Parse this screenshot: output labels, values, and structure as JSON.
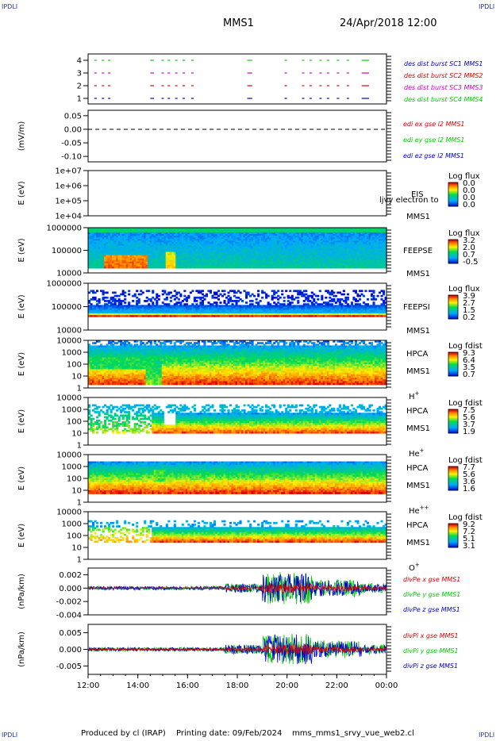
{
  "header": {
    "corner_label": "IPDLI",
    "mission": "MMS1",
    "datetime": "24/Apr/2018 12:00"
  },
  "footer": {
    "produced_by": "Produced by cl (IRAP)",
    "printing_date": "Printing date: 09/Feb/2024",
    "filename": "mms_mms1_srvy_vue_web2.cl"
  },
  "time_axis": {
    "start": "2018-04-24T12:00",
    "end": "2018-04-25T00:00",
    "tick_labels": [
      "12:00",
      "14:00",
      "16:00",
      "18:00",
      "20:00",
      "22:00",
      "00:00"
    ]
  },
  "colors": {
    "mms1": "#0000cc",
    "mms2": "#dd0000",
    "mms3": "#cc00cc",
    "mms4": "#00cc00"
  },
  "chart_data": [
    {
      "type": "scatter",
      "panel": "burst",
      "ylim": [
        0.5,
        4.5
      ],
      "y_ticks": [
        "1",
        "2",
        "3",
        "4"
      ],
      "legend": [
        {
          "text": "des dist burst SC1 MMS1",
          "color": "#0000cc"
        },
        {
          "text": "des dist burst SC2 MMS2",
          "color": "#dd0000"
        },
        {
          "text": "des dist burst SC3 MMS3",
          "color": "#cc00cc"
        },
        {
          "text": "des dist burst SC4 MMS4",
          "color": "#00cc00"
        }
      ],
      "burst_intervals_hours": [
        [
          12.25,
          12.32
        ],
        [
          12.55,
          12.6
        ],
        [
          12.8,
          12.87
        ],
        [
          14.5,
          14.65
        ],
        [
          14.95,
          15.0
        ],
        [
          15.2,
          15.25
        ],
        [
          15.5,
          15.55
        ],
        [
          15.8,
          15.85
        ],
        [
          16.15,
          16.2
        ],
        [
          18.4,
          18.6
        ],
        [
          19.9,
          20.0
        ],
        [
          20.6,
          20.65
        ],
        [
          20.9,
          20.95
        ],
        [
          21.3,
          21.35
        ],
        [
          21.6,
          21.65
        ],
        [
          22.0,
          22.1
        ],
        [
          22.4,
          22.45
        ],
        [
          23.0,
          23.3
        ]
      ]
    },
    {
      "type": "line",
      "panel": "edi_e",
      "ylabel": "(mV/m)",
      "ylim": [
        -0.12,
        0.07
      ],
      "y_ticks": [
        "0.05",
        "0.00",
        "-0.05",
        "-0.10"
      ],
      "series": [
        {
          "name": "edi ex gse l2 MMS1",
          "color": "#dd0000"
        },
        {
          "name": "edi ey gse l2 MMS1",
          "color": "#00cc00"
        },
        {
          "name": "edi ez gse l2 MMS1",
          "color": "#0000cc"
        }
      ],
      "values_note": "",
      "y": 0.0
    },
    {
      "type": "heatmap",
      "panel": "eis",
      "ylabel": "E (eV)",
      "y_ticks": [
        "1e+07",
        "1e+06",
        "1e+05",
        "1e+04"
      ],
      "right_labels": [
        "EIS",
        "MMS1"
      ],
      "overlay_text": "ljvy electron to",
      "colorbar": {
        "title": "Log flux",
        "ticks": [
          "0.0",
          "0.0",
          "0.0",
          "0.0"
        ]
      }
    },
    {
      "type": "heatmap",
      "panel": "feepse",
      "ylabel": "E (eV)",
      "y_ticks": [
        "1000000",
        "100000",
        "10000"
      ],
      "right_labels": [
        "FEEPSE",
        "MMS1"
      ],
      "colorbar": {
        "title": "Log flux",
        "ticks": [
          "3.2",
          "2.0",
          "0.7",
          "-0.5"
        ]
      }
    },
    {
      "type": "heatmap",
      "panel": "feepsi",
      "ylabel": "E (eV)",
      "y_ticks": [
        "1000000",
        "100000",
        "10000"
      ],
      "right_labels": [
        "FEEPSI",
        "MMS1"
      ],
      "colorbar": {
        "title": "Log flux",
        "ticks": [
          "3.9",
          "2.7",
          "1.5",
          "0.2"
        ]
      }
    },
    {
      "type": "heatmap",
      "panel": "hpca_h",
      "ylabel": "E (eV)",
      "y_ticks": [
        "10000",
        "1000",
        "100",
        "10",
        "1"
      ],
      "right_labels": [
        "HPCA",
        "MMS1",
        "H+"
      ],
      "colorbar": {
        "title": "Log fdist",
        "ticks": [
          "9.3",
          "6.4",
          "3.5",
          "0.7"
        ]
      }
    },
    {
      "type": "heatmap",
      "panel": "hpca_he1",
      "ylabel": "E (eV)",
      "y_ticks": [
        "10000",
        "1000",
        "100",
        "10",
        "1"
      ],
      "right_labels": [
        "HPCA",
        "MMS1",
        "He+"
      ],
      "colorbar": {
        "title": "Log fdist",
        "ticks": [
          "7.5",
          "5.6",
          "3.7",
          "1.9"
        ]
      }
    },
    {
      "type": "heatmap",
      "panel": "hpca_he2",
      "ylabel": "E (eV)",
      "y_ticks": [
        "10000",
        "1000",
        "100",
        "10",
        "1"
      ],
      "right_labels": [
        "HPCA",
        "MMS1",
        "He++"
      ],
      "colorbar": {
        "title": "Log fdist",
        "ticks": [
          "7.7",
          "5.6",
          "3.6",
          "1.6"
        ]
      }
    },
    {
      "type": "heatmap",
      "panel": "hpca_o",
      "ylabel": "E (eV)",
      "y_ticks": [
        "10000",
        "1000",
        "100",
        "10",
        "1"
      ],
      "right_labels": [
        "HPCA",
        "MMS1",
        "O+"
      ],
      "colorbar": {
        "title": "Log fdist",
        "ticks": [
          "9.2",
          "7.2",
          "5.1",
          "3.1"
        ]
      }
    },
    {
      "type": "line",
      "panel": "divpe",
      "ylabel": "(nPa/km)",
      "ylim": [
        -0.004,
        0.003
      ],
      "y_ticks": [
        "0.002",
        "0.000",
        "-0.002",
        "-0.004"
      ],
      "series": [
        {
          "name": "divPe x gse MMS1",
          "color": "#dd0000"
        },
        {
          "name": "divPe y gse MMS1",
          "color": "#00cc00"
        },
        {
          "name": "divPe z gse MMS1",
          "color": "#0000cc"
        }
      ]
    },
    {
      "type": "line",
      "panel": "divpi",
      "ylabel": "(nPa/km)",
      "ylim": [
        -0.0075,
        0.0075
      ],
      "y_ticks": [
        "0.005",
        "0.000",
        "-0.005"
      ],
      "series": [
        {
          "name": "divPi x gse MMS1",
          "color": "#dd0000"
        },
        {
          "name": "divPi y gse MMS1",
          "color": "#00cc00"
        },
        {
          "name": "divPi z gse MMS1",
          "color": "#0000cc"
        }
      ]
    }
  ]
}
